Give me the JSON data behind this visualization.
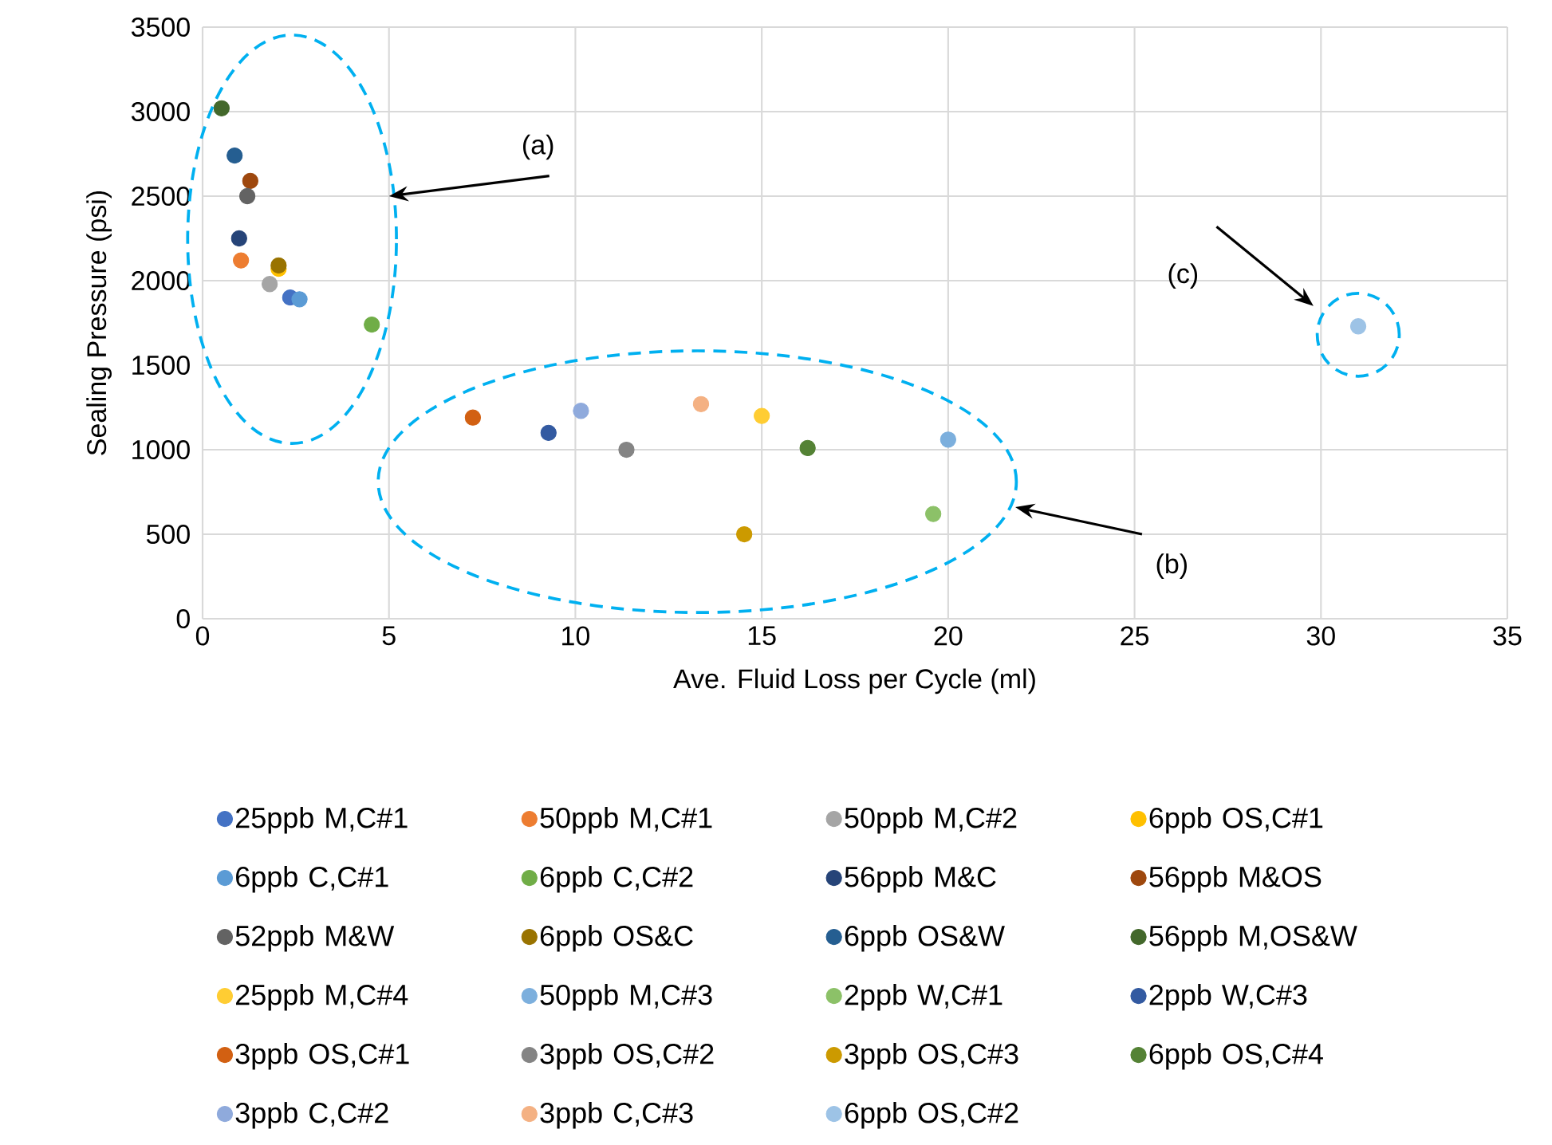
{
  "chart_data": {
    "type": "scatter",
    "xlabel": "Ave. Fluid Loss per Cycle (ml)",
    "ylabel": "Sealing Pressure (psi)",
    "xlim": [
      0,
      35
    ],
    "xticks": [
      0,
      5,
      10,
      15,
      20,
      25,
      30,
      35
    ],
    "ylim": [
      0,
      3500
    ],
    "yticks": [
      0,
      500,
      1000,
      1500,
      2000,
      2500,
      3000,
      3500
    ],
    "grid": true,
    "legend": "bottom",
    "marker": "circle",
    "series": [
      {
        "name": "25ppb M,C#1",
        "color": "#4472c4",
        "x": [
          2.35
        ],
        "values": [
          1900
        ]
      },
      {
        "name": "50ppb M,C#1",
        "color": "#ed7d31",
        "x": [
          1.03
        ],
        "values": [
          2120
        ]
      },
      {
        "name": "50ppb M,C#2",
        "color": "#a5a5a5",
        "x": [
          1.8
        ],
        "values": [
          1980
        ]
      },
      {
        "name": "6ppb OS,C#1",
        "color": "#ffc000",
        "x": [
          2.04
        ],
        "values": [
          2070
        ]
      },
      {
        "name": "6ppb C,C#1",
        "color": "#5b9bd5",
        "x": [
          2.6
        ],
        "values": [
          1890
        ]
      },
      {
        "name": "6ppb C,C#2",
        "color": "#70ad47",
        "x": [
          4.54
        ],
        "values": [
          1740
        ]
      },
      {
        "name": "56ppb M&C",
        "color": "#264478",
        "x": [
          0.98
        ],
        "values": [
          2250
        ]
      },
      {
        "name": "56ppb M&OS",
        "color": "#9e480e",
        "x": [
          1.28
        ],
        "values": [
          2590
        ]
      },
      {
        "name": "52ppb M&W",
        "color": "#636363",
        "x": [
          1.2
        ],
        "values": [
          2500
        ]
      },
      {
        "name": "6ppb OS&C",
        "color": "#997300",
        "x": [
          2.04
        ],
        "values": [
          2090
        ]
      },
      {
        "name": "6ppb OS&W",
        "color": "#255e91",
        "x": [
          0.86
        ],
        "values": [
          2740
        ]
      },
      {
        "name": "56ppb M,OS&W",
        "color": "#43682b",
        "x": [
          0.51
        ],
        "values": [
          3020
        ]
      },
      {
        "name": "25ppb M,C#4",
        "color": "#ffcd33",
        "x": [
          15
        ],
        "values": [
          1200
        ]
      },
      {
        "name": "50ppb M,C#3",
        "color": "#7cafdd",
        "x": [
          20
        ],
        "values": [
          1060
        ]
      },
      {
        "name": "2ppb W,C#1",
        "color": "#8cc168",
        "x": [
          19.6
        ],
        "values": [
          620
        ]
      },
      {
        "name": "2ppb W,C#3",
        "color": "#335aa1",
        "x": [
          9.28
        ],
        "values": [
          1100
        ]
      },
      {
        "name": "3ppb OS,C#1",
        "color": "#d26012",
        "x": [
          7.25
        ],
        "values": [
          1190
        ]
      },
      {
        "name": "3ppb OS,C#2",
        "color": "#848484",
        "x": [
          11.37
        ],
        "values": [
          1000
        ]
      },
      {
        "name": "3ppb OS,C#3",
        "color": "#cc9a00",
        "x": [
          14.53
        ],
        "values": [
          500
        ]
      },
      {
        "name": "6ppb OS,C#4",
        "color": "#548235",
        "x": [
          16.23
        ],
        "values": [
          1010
        ]
      },
      {
        "name": "3ppb C,C#2",
        "color": "#8faadc",
        "x": [
          10.15
        ],
        "values": [
          1230
        ]
      },
      {
        "name": "3ppb C,C#3",
        "color": "#f4b183",
        "x": [
          13.37
        ],
        "values": [
          1270
        ]
      },
      {
        "name": "6ppb OS,C#2",
        "color": "#9dc3e6",
        "x": [
          31
        ],
        "values": [
          1730
        ]
      }
    ],
    "annotations": [
      "(a)",
      "(b)",
      "(c)"
    ]
  }
}
